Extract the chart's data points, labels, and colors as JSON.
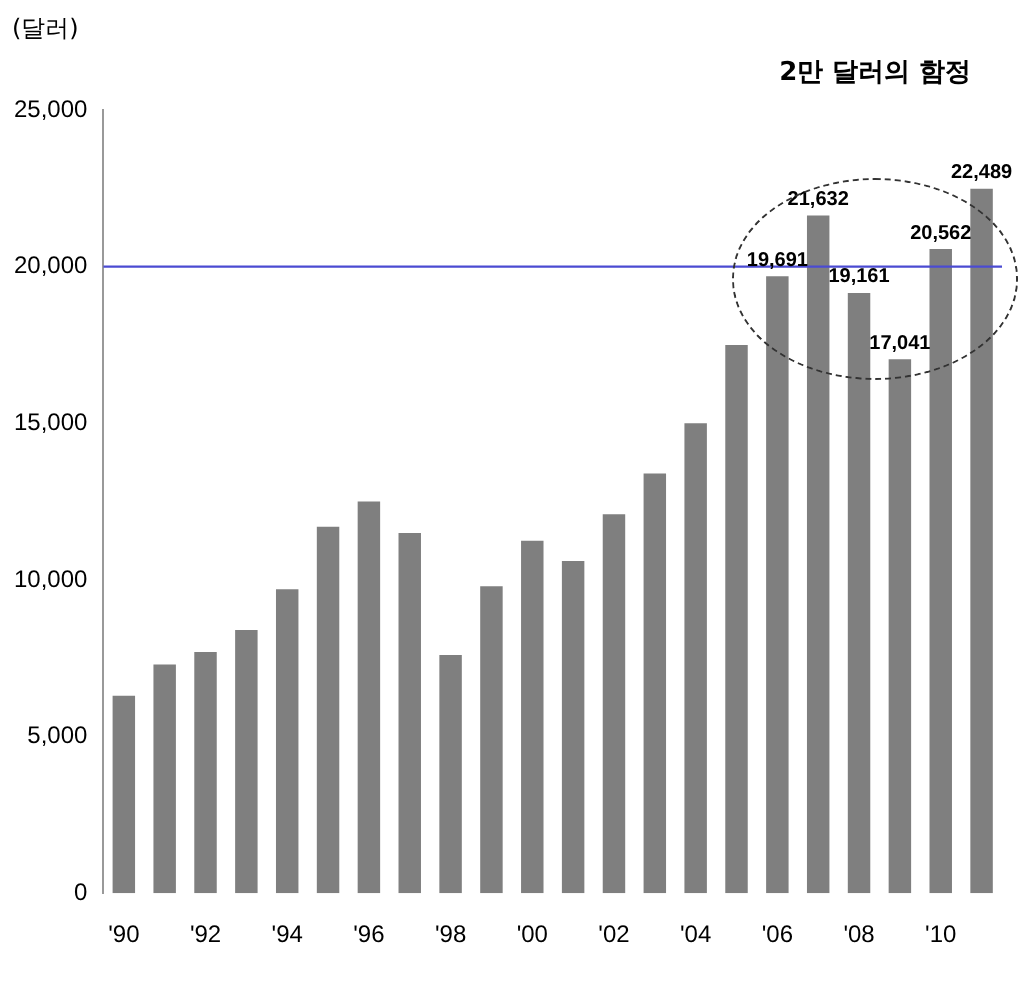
{
  "chart_data": {
    "type": "bar",
    "ylabel": "(달러)",
    "annotations": [
      "2만 달러의 함정"
    ],
    "categories": [
      "'90",
      null,
      "'92",
      null,
      "'94",
      null,
      "'96",
      null,
      "'98",
      null,
      "'00",
      null,
      "'02",
      null,
      "'04",
      null,
      "'06",
      null,
      "'08",
      null,
      "'10",
      null
    ],
    "values": [
      6300,
      7300,
      7700,
      8400,
      9700,
      11700,
      12500,
      11500,
      7600,
      9800,
      11250,
      10600,
      12100,
      13400,
      15000,
      17500,
      19691,
      21632,
      19161,
      17041,
      20562,
      22489
    ],
    "value_labels": [
      null,
      null,
      null,
      null,
      null,
      null,
      null,
      null,
      null,
      null,
      null,
      null,
      null,
      null,
      null,
      null,
      "19,691",
      "21,632",
      "19,161",
      "17,041",
      "20,562",
      "22,489"
    ],
    "color": "#7f7f7f",
    "ylim": [
      0,
      25000
    ],
    "yticks": [
      0,
      {
        "value": 5000,
        "label": "5,000"
      },
      {
        "value": 10000,
        "label": "10,000"
      },
      {
        "value": 15000,
        "label": "15,000"
      },
      {
        "value": 20000,
        "label": "20,000"
      },
      {
        "value": 25000,
        "label": "25,000"
      }
    ],
    "ref_lines": [
      {
        "axis": "y",
        "value": 20000,
        "color": "#4b4bd2"
      }
    ],
    "grid": false,
    "legend": false
  }
}
